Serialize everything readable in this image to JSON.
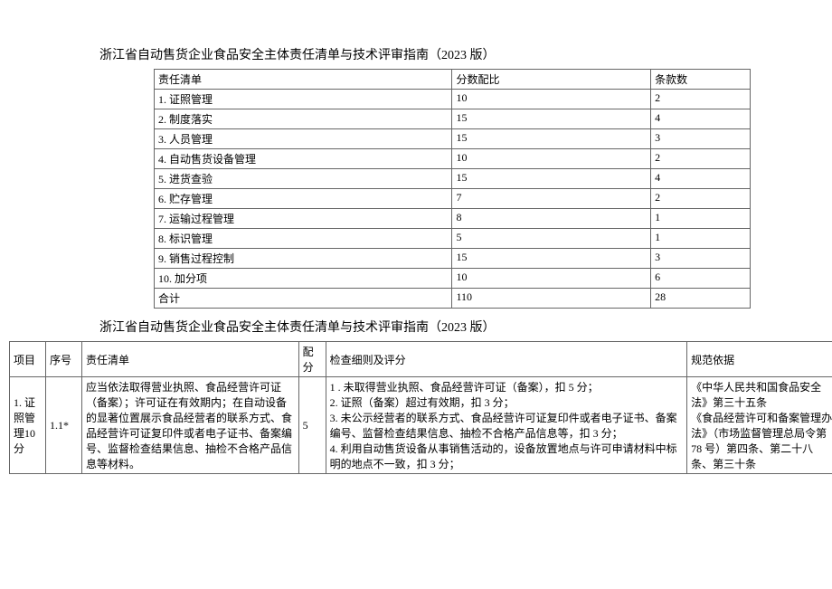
{
  "titles": {
    "main": "浙江省自动售货企业食品安全主体责任清单与技术评审指南（2023 版）",
    "second": "浙江省自动售货企业食品安全主体责任清单与技术评审指南（2023 版）"
  },
  "summary": {
    "headers": [
      "责任清单",
      "分数配比",
      "条款数"
    ],
    "rows": [
      [
        "1. 证照管理",
        "10",
        "2"
      ],
      [
        "2. 制度落实",
        "15",
        "4"
      ],
      [
        "3. 人员管理",
        "15",
        "3"
      ],
      [
        "4. 自动售货设备管理",
        "10",
        "2"
      ],
      [
        "5. 进货查验",
        "15",
        "4"
      ],
      [
        "6. 贮存管理",
        "7",
        "2"
      ],
      [
        "7. 运输过程管理",
        "8",
        "1"
      ],
      [
        "8. 标识管理",
        "5",
        "1"
      ],
      [
        "9. 销售过程控制",
        "15",
        "3"
      ],
      [
        "10. 加分项",
        "10",
        "6"
      ],
      [
        "合计",
        "110",
        "28"
      ]
    ]
  },
  "detail": {
    "headers": [
      "项目",
      "序号",
      "责任清单",
      "配分",
      "检查细则及评分",
      "规范依据"
    ],
    "row1": {
      "project": "1. 证照管理10 分",
      "seq": "1.1*",
      "duty": "应当依法取得营业执照、食品经营许可证（备案）；许可证在有效期内；在自动设备的显著位置展示食品经营者的联系方式、食品经营许可证复印件或者电子证书、备案编号、监督检查结果信息、抽检不合格产品信息等材料。",
      "score": "5",
      "rule_lines": [
        "1 . 未取得营业执照、食品经营许可证（备案），扣 5 分；",
        "2. 证照（备案）超过有效期，扣 3 分；",
        "3. 未公示经营者的联系方式、食品经营许可证复印件或者电子证书、备案编号、监督检查结果信息、抽检不合格产品信息等，扣 3 分；",
        "4. 利用自动售货设备从事销售活动的，设备放置地点与许可申请材料中标明的地点不一致，扣 3 分；"
      ],
      "basis_lines": [
        "《中华人民共和国食品安全法》第三十五条",
        "《食品经营许可和备案管理办法》（市场监督管理总局令第 78 号）第四条、第二十八条、第三十条"
      ]
    }
  }
}
